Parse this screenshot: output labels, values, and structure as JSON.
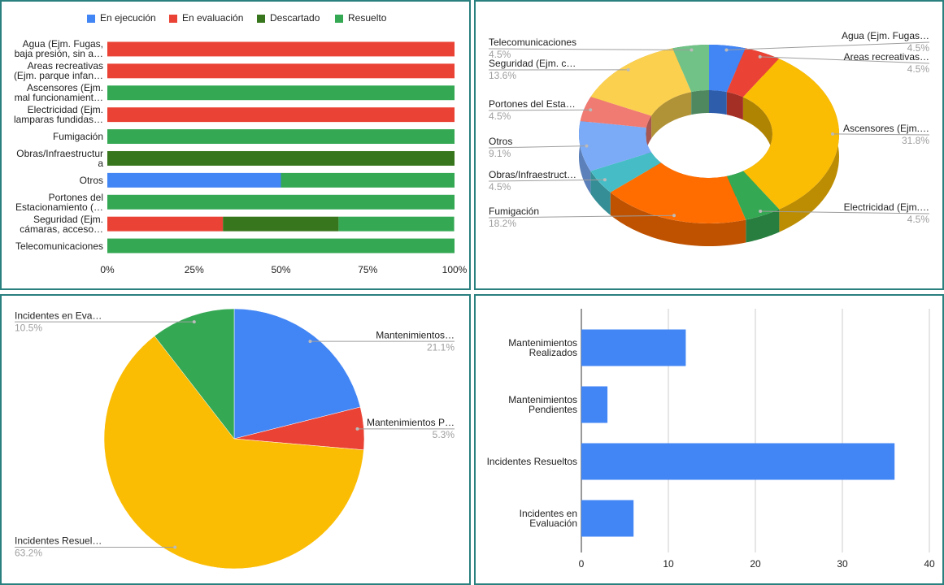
{
  "chart_data": [
    {
      "type": "bar",
      "orientation": "horizontal",
      "stacked": true,
      "categories": [
        "Agua (Ejm. Fugas,\nbaja presión, sin a…",
        "Areas recreativas\n(Ejm. parque infan…",
        "Ascensores (Ejm.\nmal funcionamient…",
        "Electricidad (Ejm.\nlamparas fundidas…",
        "Fumigación",
        "Obras/Infraestructur\na",
        "Otros",
        "Portones del\nEstacionamiento (…",
        "Seguridad (Ejm.\ncámaras, acceso…",
        "Telecomunicaciones"
      ],
      "series": [
        {
          "name": "En ejecución",
          "color": "#4285f4",
          "values": [
            0,
            0,
            0,
            0,
            0,
            0,
            50,
            0,
            0,
            0
          ]
        },
        {
          "name": "En evaluación",
          "color": "#ea4335",
          "values": [
            100,
            100,
            0,
            100,
            0,
            0,
            0,
            0,
            33.3,
            0
          ]
        },
        {
          "name": "Descartado",
          "color": "#38761d",
          "values": [
            0,
            0,
            0,
            0,
            0,
            100,
            0,
            0,
            33.3,
            0
          ]
        },
        {
          "name": "Resuelto",
          "color": "#34a853",
          "values": [
            0,
            0,
            100,
            0,
            100,
            0,
            50,
            100,
            33.3,
            100
          ]
        }
      ],
      "xlim": [
        0,
        100
      ],
      "xticks": [
        {
          "value": 0,
          "label": "0%"
        },
        {
          "value": 25,
          "label": "25%"
        },
        {
          "value": 50,
          "label": "50%"
        },
        {
          "value": 75,
          "label": "75%"
        },
        {
          "value": 100,
          "label": "100%"
        }
      ],
      "legend": "top"
    },
    {
      "type": "donut",
      "three_d": true,
      "categories": [
        "Agua (Ejm. Fugas…",
        "Areas recreativas…",
        "Ascensores (Ejm.…",
        "Electricidad (Ejm.…",
        "Fumigación",
        "Obras/Infraestruct…",
        "Otros",
        "Portones del Esta…",
        "Seguridad (Ejm. c…",
        "Telecomunicaciones"
      ],
      "values": [
        4.5,
        4.5,
        31.8,
        4.5,
        18.2,
        4.5,
        9.1,
        4.5,
        13.6,
        4.5
      ],
      "value_labels": [
        "4.5%",
        "4.5%",
        "31.8%",
        "4.5%",
        "18.2%",
        "4.5%",
        "9.1%",
        "4.5%",
        "13.6%",
        "4.5%"
      ],
      "colors": [
        "#4285f4",
        "#ea4335",
        "#fbbc04",
        "#34a853",
        "#ff6d01",
        "#46bdc6",
        "#7baaf7",
        "#f07b72",
        "#fcd04f",
        "#71c287"
      ]
    },
    {
      "type": "pie",
      "categories": [
        "Mantenimientos…",
        "Mantenimientos P…",
        "Incidentes Resuel…",
        "Incidentes en Eva…"
      ],
      "values": [
        21.1,
        5.3,
        63.2,
        10.5
      ],
      "value_labels": [
        "21.1%",
        "5.3%",
        "63.2%",
        "10.5%"
      ],
      "colors": [
        "#4285f4",
        "#ea4335",
        "#fbbc04",
        "#34a853"
      ]
    },
    {
      "type": "bar",
      "orientation": "horizontal",
      "categories": [
        "Mantenimientos\nRealizados",
        "Mantenimientos\nPendientes",
        "Incidentes Resueltos",
        "Incidentes en\nEvaluación"
      ],
      "values": [
        12,
        3,
        36,
        6
      ],
      "color": "#4285f4",
      "xlim": [
        0,
        40
      ],
      "xticks": [
        0,
        10,
        20,
        30,
        40
      ],
      "grid": true
    }
  ]
}
